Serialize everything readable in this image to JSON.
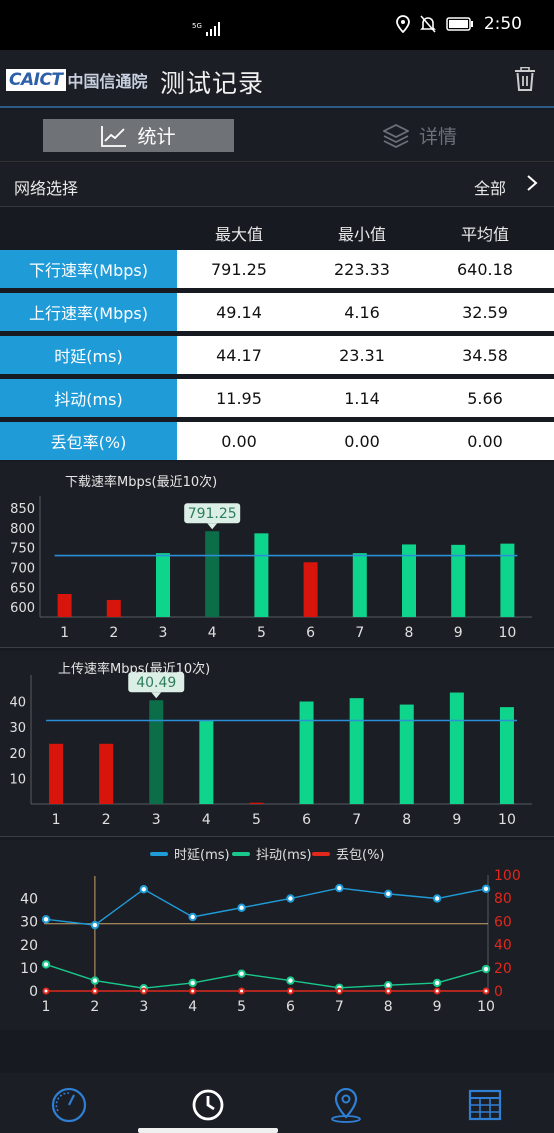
{
  "status_bar": {
    "network": "5G",
    "time": "2:50"
  },
  "header": {
    "logo_text": "CAICT",
    "logo_cn": "中国信通院",
    "title": "测试记录",
    "delete_icon": "trash-icon"
  },
  "tabs": [
    {
      "label": "统计",
      "icon": "line-chart-icon",
      "active": true
    },
    {
      "label": "详情",
      "icon": "layers-icon",
      "active": false
    }
  ],
  "network_select": {
    "label": "网络选择",
    "value": "全部"
  },
  "stats_table": {
    "headers": [
      "最大值",
      "最小值",
      "平均值"
    ],
    "rows": [
      {
        "label": "下行速率(Mbps)",
        "max": "791.25",
        "min": "223.33",
        "avg": "640.18"
      },
      {
        "label": "上行速率(Mbps)",
        "max": "49.14",
        "min": "4.16",
        "avg": "32.59"
      },
      {
        "label": "时延(ms)",
        "max": "44.17",
        "min": "23.31",
        "avg": "34.58"
      },
      {
        "label": "抖动(ms)",
        "max": "11.95",
        "min": "1.14",
        "avg": "5.66"
      },
      {
        "label": "丢包率(%)",
        "max": "0.00",
        "min": "0.00",
        "avg": "0.00"
      }
    ]
  },
  "chart_data": [
    {
      "type": "bar",
      "title": "下载速率Mbps(最近10次)",
      "categories": [
        "1",
        "2",
        "3",
        "4",
        "5",
        "6",
        "7",
        "8",
        "9",
        "10"
      ],
      "values": [
        633,
        618,
        736,
        791.25,
        786,
        713,
        736,
        758,
        757,
        760
      ],
      "bar_colors": [
        "#d8150c",
        "#d8150c",
        "#0fd48c",
        "#0b6e48",
        "#0fd48c",
        "#d8150c",
        "#0fd48c",
        "#0fd48c",
        "#0fd48c",
        "#0fd48c"
      ],
      "average_line": 730,
      "highlight": {
        "index": 3,
        "label": "791.25"
      },
      "yticks": [
        "600",
        "650",
        "700",
        "750",
        "800",
        "850"
      ],
      "ylim": [
        575,
        865
      ]
    },
    {
      "type": "bar",
      "title": "上传速率Mbps(最近10次)",
      "categories": [
        "1",
        "2",
        "3",
        "4",
        "5",
        "6",
        "7",
        "8",
        "9",
        "10"
      ],
      "values": [
        23.5,
        23.5,
        40.49,
        32.5,
        0.5,
        40,
        41.3,
        38.8,
        43.5,
        37.8
      ],
      "bar_colors": [
        "#d8150c",
        "#d8150c",
        "#0b6e48",
        "#0fd48c",
        "#d8150c",
        "#0fd48c",
        "#0fd48c",
        "#0fd48c",
        "#0fd48c",
        "#0fd48c"
      ],
      "average_line": 32.59,
      "highlight": {
        "index": 2,
        "label": "40.49"
      },
      "yticks": [
        "10",
        "20",
        "30",
        "40"
      ],
      "ylim": [
        0,
        48
      ]
    },
    {
      "type": "line",
      "legend": [
        "时延(ms)",
        "抖动(ms)",
        "丢包(%)"
      ],
      "colors": [
        "#1f9bd8",
        "#19c98c",
        "#e0281c"
      ],
      "categories": [
        "1",
        "2",
        "3",
        "4",
        "5",
        "6",
        "7",
        "8",
        "9",
        "10"
      ],
      "series": [
        {
          "name": "时延(ms)",
          "values": [
            31,
            28.5,
            44,
            32,
            36,
            40,
            44.5,
            42,
            40,
            44.2
          ]
        },
        {
          "name": "抖动(ms)",
          "values": [
            11.5,
            4.5,
            1.2,
            3.5,
            7.5,
            4.5,
            1.4,
            2.5,
            3.5,
            9.5
          ]
        },
        {
          "name": "丢包(%)",
          "values": [
            0,
            0,
            0,
            0,
            0,
            0,
            0,
            0,
            0,
            0
          ]
        }
      ],
      "left_yticks": [
        "0",
        "10",
        "20",
        "30",
        "40"
      ],
      "right_yticks": [
        "0",
        "20",
        "40",
        "60",
        "80",
        "100"
      ],
      "left_ylim": [
        0,
        48
      ],
      "right_ylim": [
        0,
        100
      ],
      "crosshair": {
        "index": 1,
        "right_value": 58
      }
    }
  ],
  "bottom_nav": [
    {
      "icon": "speedometer-icon"
    },
    {
      "icon": "clock-icon",
      "active": true
    },
    {
      "icon": "map-pin-icon"
    },
    {
      "icon": "table-grid-icon"
    }
  ]
}
